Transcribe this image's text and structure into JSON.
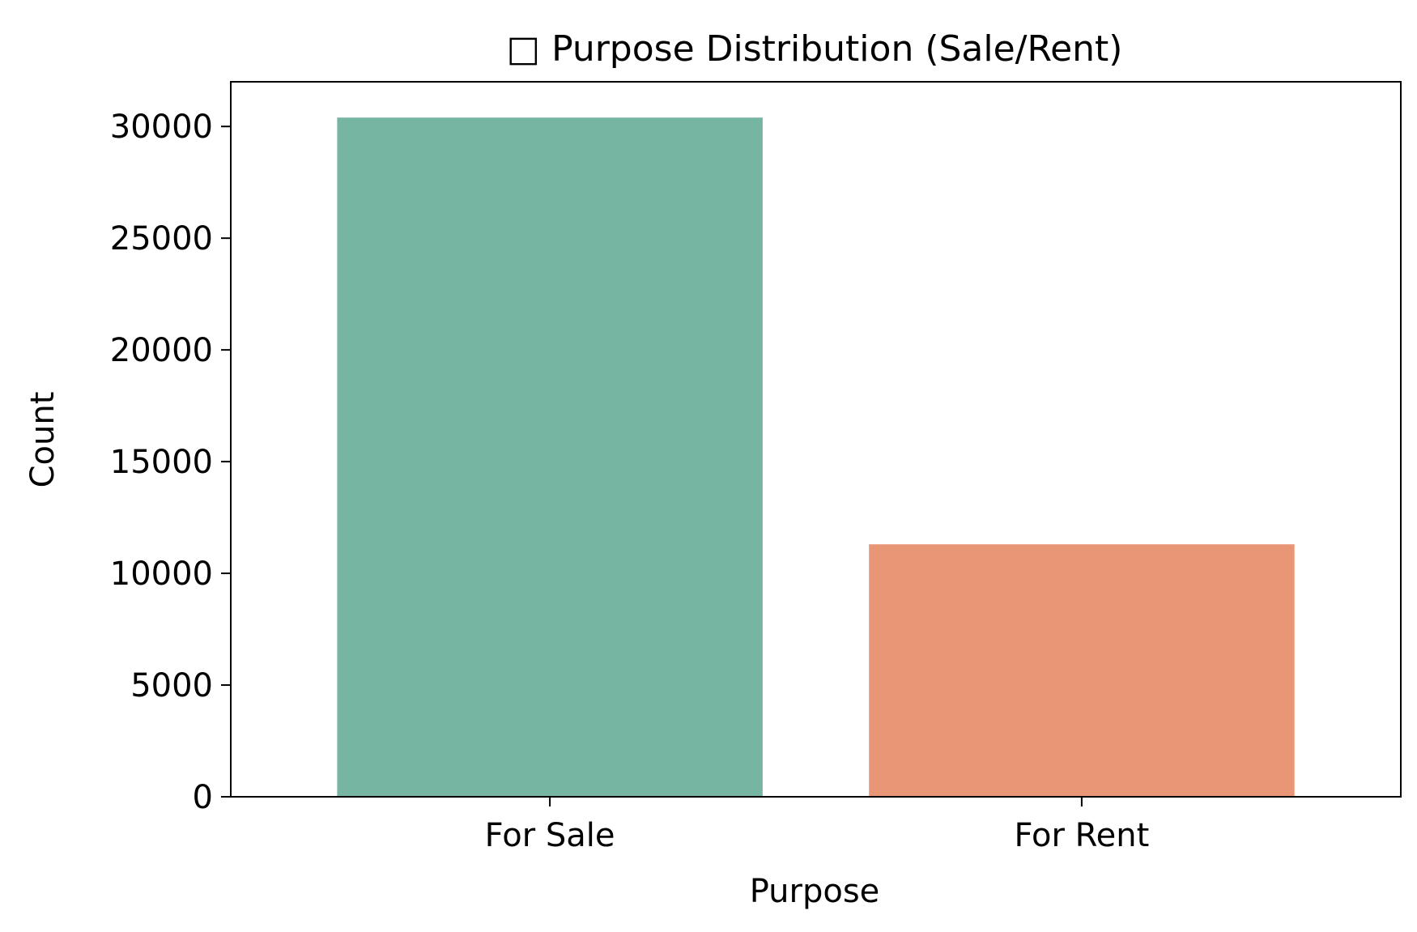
{
  "chart_data": {
    "type": "bar",
    "title": "□ Purpose Distribution (Sale/Rent)",
    "xlabel": "Purpose",
    "ylabel": "Count",
    "categories": [
      "For Sale",
      "For Rent"
    ],
    "values": [
      30400,
      11300
    ],
    "colors": [
      "#76b5a2",
      "#e99676"
    ],
    "ylim": [
      0,
      32000
    ],
    "yticks": [
      0,
      5000,
      10000,
      15000,
      20000,
      25000,
      30000
    ],
    "grid": false,
    "legend": false
  }
}
